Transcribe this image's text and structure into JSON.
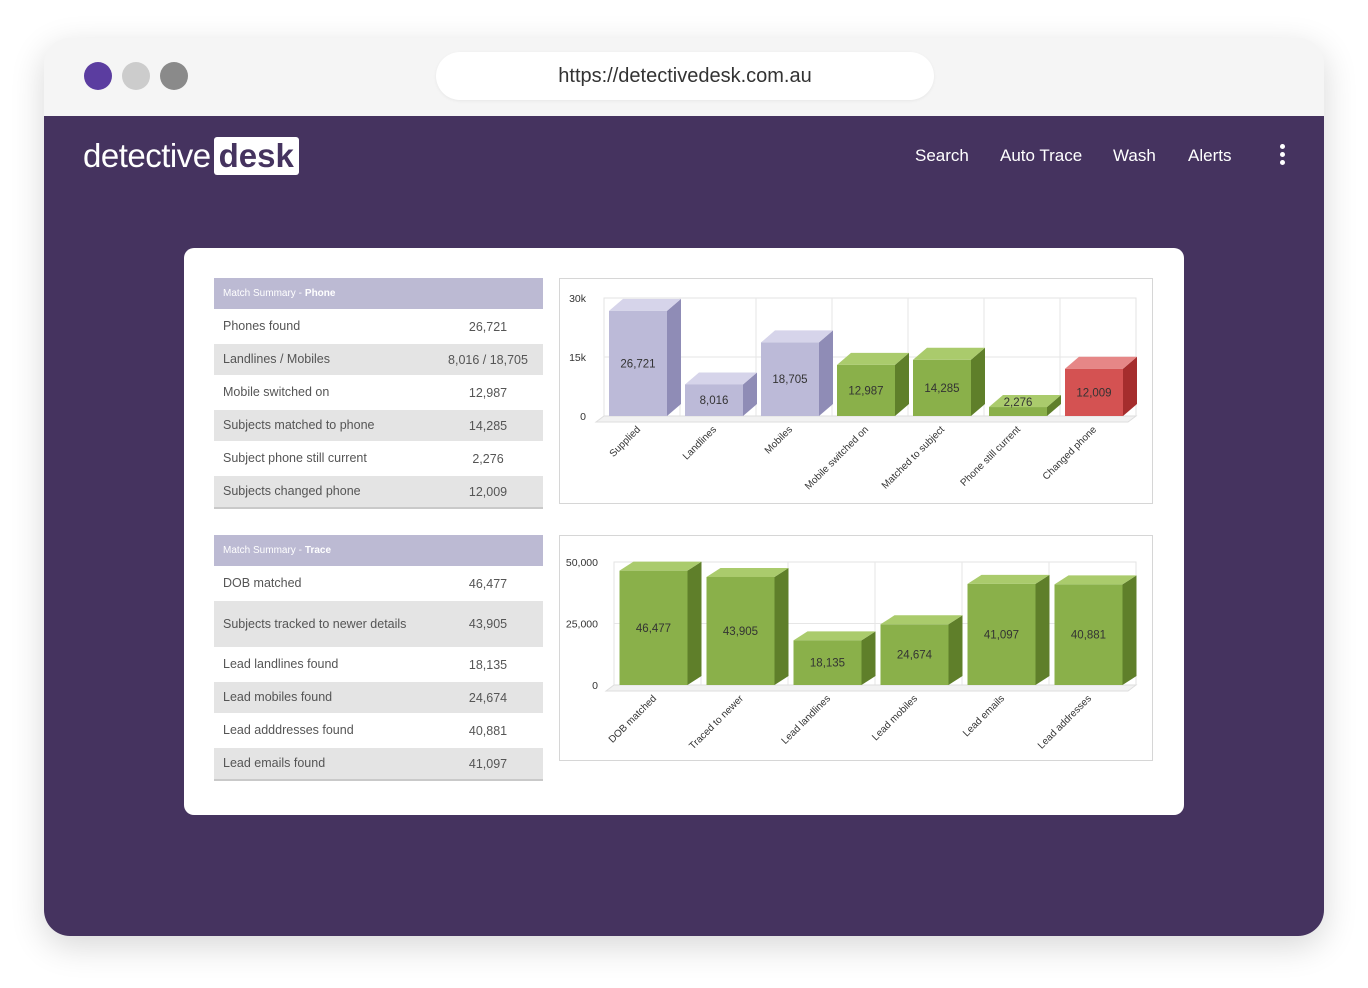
{
  "browser": {
    "url": "https://detectivedesk.com.au",
    "dot_colors": [
      "#5b3da0",
      "#cccccc",
      "#8a8a8a"
    ]
  },
  "brand": {
    "part1": "detective",
    "part2": "desk"
  },
  "colors": {
    "background": "#45335f",
    "header_row": "#bcbad3",
    "bar_purple": "#bcbad8",
    "bar_green": "#8ab04a",
    "bar_red": "#d45252"
  },
  "nav": {
    "items": [
      "Search",
      "Auto Trace",
      "Wash",
      "Alerts"
    ],
    "menu_icon": "kebab-vertical-icon"
  },
  "phone_table": {
    "title_light": "Match Summary - ",
    "title_bold": "Phone",
    "rows": [
      {
        "label": "Phones found",
        "value": "26,721"
      },
      {
        "label": "Landlines / Mobiles",
        "value": "8,016 / 18,705"
      },
      {
        "label": "Mobile switched on",
        "value": "12,987"
      },
      {
        "label": "Subjects matched to phone",
        "value": "14,285"
      },
      {
        "label": "Subject phone still current",
        "value": "2,276"
      },
      {
        "label": "Subjects changed phone",
        "value": "12,009"
      }
    ]
  },
  "trace_table": {
    "title_light": "Match Summary - ",
    "title_bold": "Trace",
    "rows": [
      {
        "label": "DOB matched",
        "value": "46,477"
      },
      {
        "label": "Subjects tracked to newer details",
        "value": "43,905"
      },
      {
        "label": "Lead landlines found",
        "value": "18,135"
      },
      {
        "label": "Lead mobiles found",
        "value": "24,674"
      },
      {
        "label": "Lead adddresses found",
        "value": "40,881"
      },
      {
        "label": "Lead emails found",
        "value": "41,097"
      }
    ]
  },
  "chart_data": [
    {
      "type": "bar",
      "categories": [
        "Supplied",
        "Landlines",
        "Mobiles",
        "Mobile switched on",
        "Matched to subject",
        "Phone still current",
        "Changed phone"
      ],
      "values": [
        26721,
        8016,
        18705,
        12987,
        14285,
        2276,
        12009
      ],
      "value_labels": [
        "26,721",
        "8,016",
        "18,705",
        "12,987",
        "14,285",
        "2,276",
        "12,009"
      ],
      "bar_colors": [
        "purple",
        "purple",
        "purple",
        "green",
        "green",
        "green",
        "red"
      ],
      "yticks": [
        "0",
        "15k",
        "30k"
      ],
      "ylim": [
        0,
        30000
      ],
      "grid": true
    },
    {
      "type": "bar",
      "categories": [
        "DOB matched",
        "Traced to newer",
        "Lead landlines",
        "Lead mobiles",
        "Lead emails",
        "Lead addresses"
      ],
      "values": [
        46477,
        43905,
        18135,
        24674,
        41097,
        40881
      ],
      "value_labels": [
        "46,477",
        "43,905",
        "18,135",
        "24,674",
        "41,097",
        "40,881"
      ],
      "bar_colors": [
        "green",
        "green",
        "green",
        "green",
        "green",
        "green"
      ],
      "yticks": [
        "0",
        "25,000",
        "50,000"
      ],
      "ylim": [
        0,
        50000
      ],
      "grid": true
    }
  ]
}
